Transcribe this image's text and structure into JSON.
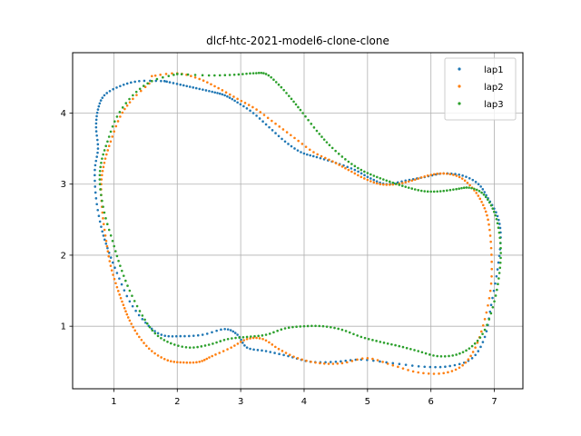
{
  "chart_data": {
    "type": "scatter",
    "title": "dlcf-htc-2021-model6-clone-clone",
    "xlabel": "",
    "ylabel": "",
    "xlim": [
      0.35,
      7.45
    ],
    "ylim": [
      0.12,
      4.85
    ],
    "xticks": [
      1,
      2,
      3,
      4,
      5,
      6,
      7
    ],
    "yticks": [
      1,
      2,
      3,
      4
    ],
    "grid": true,
    "legend_position": "top-right",
    "series": [
      {
        "name": "lap1",
        "color": "#1f77b4",
        "x": [
          1.8,
          1.4,
          1.1,
          0.85,
          0.75,
          0.72,
          0.75,
          0.7,
          0.72,
          0.8,
          0.9,
          1.05,
          1.25,
          1.5,
          1.75,
          2.05,
          2.4,
          2.75,
          2.95,
          3.1,
          3.4,
          3.75,
          4.1,
          4.5,
          4.9,
          5.4,
          5.9,
          6.3,
          6.65,
          6.85,
          6.95,
          7.05,
          7.1,
          7.05,
          6.9,
          6.75,
          6.5,
          6.2,
          5.9,
          5.6,
          5.3,
          5.05,
          4.8,
          4.5,
          4.2,
          3.95,
          3.7,
          3.45,
          3.2,
          2.95,
          2.75,
          2.55,
          2.3,
          2.05,
          1.8
        ],
        "y": [
          4.45,
          4.45,
          4.38,
          4.25,
          4.05,
          3.8,
          3.5,
          3.2,
          2.8,
          2.4,
          2.1,
          1.75,
          1.35,
          1.05,
          0.88,
          0.86,
          0.88,
          0.96,
          0.88,
          0.7,
          0.65,
          0.58,
          0.5,
          0.5,
          0.53,
          0.48,
          0.43,
          0.44,
          0.55,
          0.85,
          1.3,
          1.8,
          2.25,
          2.55,
          2.8,
          3.0,
          3.12,
          3.15,
          3.1,
          3.05,
          3.0,
          3.08,
          3.2,
          3.3,
          3.38,
          3.45,
          3.6,
          3.8,
          4.0,
          4.15,
          4.25,
          4.3,
          4.35,
          4.4,
          4.45
        ]
      },
      {
        "name": "lap2",
        "color": "#ff7f0e",
        "x": [
          1.6,
          1.3,
          1.1,
          0.95,
          0.85,
          0.8,
          0.82,
          0.88,
          0.95,
          1.05,
          1.15,
          1.25,
          1.4,
          1.6,
          1.85,
          2.1,
          2.35,
          2.55,
          2.85,
          3.1,
          3.35,
          3.6,
          3.9,
          4.25,
          4.6,
          5.0,
          5.4,
          5.8,
          6.2,
          6.5,
          6.7,
          6.85,
          6.95,
          6.95,
          6.9,
          6.8,
          6.65,
          6.45,
          6.2,
          5.95,
          5.7,
          5.45,
          5.2,
          4.95,
          4.7,
          4.45,
          4.15,
          3.85,
          3.55,
          3.25,
          2.95,
          2.65,
          2.35,
          2.0,
          1.6
        ],
        "y": [
          4.45,
          4.2,
          3.95,
          3.6,
          3.3,
          3.0,
          2.6,
          2.2,
          1.85,
          1.55,
          1.3,
          1.08,
          0.85,
          0.65,
          0.52,
          0.49,
          0.5,
          0.58,
          0.7,
          0.82,
          0.82,
          0.68,
          0.55,
          0.48,
          0.48,
          0.55,
          0.45,
          0.35,
          0.34,
          0.45,
          0.7,
          1.1,
          1.6,
          2.1,
          2.5,
          2.75,
          2.95,
          3.1,
          3.15,
          3.12,
          3.05,
          3.0,
          3.0,
          3.08,
          3.2,
          3.32,
          3.45,
          3.65,
          3.85,
          4.05,
          4.2,
          4.35,
          4.48,
          4.56,
          4.52
        ]
      },
      {
        "name": "lap3",
        "color": "#2ca02c",
        "x": [
          2.0,
          1.6,
          1.3,
          1.05,
          0.9,
          0.8,
          0.78,
          0.85,
          0.98,
          1.1,
          1.25,
          1.45,
          1.65,
          1.9,
          2.2,
          2.5,
          2.8,
          3.1,
          3.4,
          3.7,
          4.0,
          4.3,
          4.6,
          4.9,
          5.2,
          5.5,
          5.8,
          6.1,
          6.4,
          6.65,
          6.85,
          7.0,
          7.08,
          7.1,
          7.05,
          6.95,
          6.8,
          6.6,
          6.4,
          6.15,
          5.9,
          5.65,
          5.4,
          5.15,
          4.9,
          4.65,
          4.4,
          4.2,
          3.98,
          3.8,
          3.6,
          3.4,
          3.2,
          2.9,
          2.5,
          2.0
        ],
        "y": [
          4.55,
          4.45,
          4.25,
          3.95,
          3.6,
          3.3,
          3.0,
          2.6,
          2.2,
          1.85,
          1.5,
          1.15,
          0.9,
          0.76,
          0.7,
          0.74,
          0.82,
          0.85,
          0.88,
          0.97,
          1.0,
          1.0,
          0.95,
          0.85,
          0.78,
          0.72,
          0.65,
          0.58,
          0.6,
          0.72,
          0.95,
          1.35,
          1.75,
          2.1,
          2.45,
          2.7,
          2.88,
          2.95,
          2.93,
          2.9,
          2.9,
          2.95,
          3.02,
          3.1,
          3.2,
          3.35,
          3.55,
          3.75,
          4.0,
          4.2,
          4.4,
          4.55,
          4.56,
          4.54,
          4.53,
          4.55
        ]
      }
    ]
  }
}
